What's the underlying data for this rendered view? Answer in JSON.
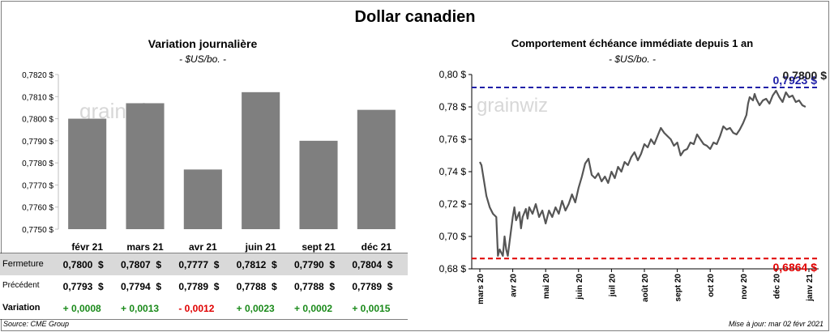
{
  "title": "Dollar canadien",
  "left_panel": {
    "title": "Variation  journalière",
    "unit": "- $US/bo. -",
    "watermark": "grainwiz"
  },
  "right_panel": {
    "title": "Comportement échéance immédiate depuis 1 an",
    "unit": "- $US/bo. -",
    "watermark": "grainwiz"
  },
  "table": {
    "rows": [
      {
        "label": "Fermeture",
        "values": [
          "0,7800  $",
          "0,7807  $",
          "0,7777  $",
          "0,7812  $",
          "0,7790  $",
          "0,7804  $"
        ]
      },
      {
        "label": "Précédent",
        "values": [
          "0,7793  $",
          "0,7794  $",
          "0,7789  $",
          "0,7788  $",
          "0,7788  $",
          "0,7789  $"
        ]
      },
      {
        "label": "Variation",
        "values": [
          "+ 0,0008",
          "+ 0,0013",
          "- 0,0012",
          "+ 0,0023",
          "+ 0,0002",
          "+ 0,0015"
        ]
      }
    ],
    "variation_colors": [
      "#1a8a1a",
      "#1a8a1a",
      "#e00000",
      "#1a8a1a",
      "#1a8a1a",
      "#1a8a1a"
    ]
  },
  "footer": {
    "source": "Source: CME Group",
    "updated": "Mise à jour: mar 02 févr 2021"
  },
  "chart_data": [
    {
      "type": "bar",
      "title": "Variation  journalière",
      "subtitle": "- $US/bo. -",
      "categories": [
        "févr 21",
        "mars 21",
        "avr 21",
        "juin 21",
        "sept 21",
        "déc 21"
      ],
      "values": [
        0.78,
        0.7807,
        0.7777,
        0.7812,
        0.779,
        0.7804
      ],
      "ylim": [
        0.775,
        0.782
      ],
      "yticks": [
        "0,7750 $",
        "0,7760 $",
        "0,7770 $",
        "0,7780 $",
        "0,7790 $",
        "0,7800 $",
        "0,7810 $",
        "0,7820 $"
      ],
      "bar_color": "#7f7f7f",
      "grid": false
    },
    {
      "type": "line",
      "title": "Comportement échéance immédiate depuis 1 an",
      "subtitle": "- $US/bo. -",
      "xlabels": [
        "mars 20",
        "avr 20",
        "mai 20",
        "juin 20",
        "juil 20",
        "août 20",
        "sept 20",
        "oct 20",
        "nov 20",
        "déc 20",
        "janv 21"
      ],
      "ylim": [
        0.68,
        0.8
      ],
      "yticks": [
        "0,68 $",
        "0,70 $",
        "0,72 $",
        "0,74 $",
        "0,76 $",
        "0,78 $",
        "0,80 $"
      ],
      "series": [
        {
          "color": "#555555",
          "points": [
            [
              0.0,
              0.746
            ],
            [
              0.05,
              0.744
            ],
            [
              0.12,
              0.735
            ],
            [
              0.2,
              0.725
            ],
            [
              0.3,
              0.718
            ],
            [
              0.4,
              0.714
            ],
            [
              0.5,
              0.712
            ],
            [
              0.55,
              0.688
            ],
            [
              0.6,
              0.692
            ],
            [
              0.65,
              0.69
            ],
            [
              0.7,
              0.688
            ],
            [
              0.75,
              0.7
            ],
            [
              0.8,
              0.692
            ],
            [
              0.85,
              0.688
            ],
            [
              0.9,
              0.696
            ],
            [
              1.0,
              0.712
            ],
            [
              1.05,
              0.718
            ],
            [
              1.1,
              0.71
            ],
            [
              1.2,
              0.715
            ],
            [
              1.25,
              0.705
            ],
            [
              1.3,
              0.712
            ],
            [
              1.4,
              0.717
            ],
            [
              1.45,
              0.711
            ],
            [
              1.5,
              0.718
            ],
            [
              1.6,
              0.714
            ],
            [
              1.7,
              0.72
            ],
            [
              1.8,
              0.712
            ],
            [
              1.9,
              0.716
            ],
            [
              2.0,
              0.708
            ],
            [
              2.1,
              0.716
            ],
            [
              2.2,
              0.712
            ],
            [
              2.3,
              0.718
            ],
            [
              2.4,
              0.714
            ],
            [
              2.5,
              0.722
            ],
            [
              2.6,
              0.716
            ],
            [
              2.7,
              0.72
            ],
            [
              2.8,
              0.726
            ],
            [
              2.9,
              0.721
            ],
            [
              3.0,
              0.73
            ],
            [
              3.1,
              0.737
            ],
            [
              3.2,
              0.745
            ],
            [
              3.3,
              0.748
            ],
            [
              3.4,
              0.738
            ],
            [
              3.5,
              0.736
            ],
            [
              3.6,
              0.739
            ],
            [
              3.7,
              0.734
            ],
            [
              3.8,
              0.737
            ],
            [
              3.9,
              0.733
            ],
            [
              4.0,
              0.74
            ],
            [
              4.1,
              0.736
            ],
            [
              4.2,
              0.743
            ],
            [
              4.3,
              0.74
            ],
            [
              4.4,
              0.746
            ],
            [
              4.5,
              0.744
            ],
            [
              4.6,
              0.749
            ],
            [
              4.7,
              0.752
            ],
            [
              4.8,
              0.747
            ],
            [
              4.9,
              0.751
            ],
            [
              5.0,
              0.757
            ],
            [
              5.1,
              0.755
            ],
            [
              5.2,
              0.76
            ],
            [
              5.3,
              0.757
            ],
            [
              5.4,
              0.762
            ],
            [
              5.5,
              0.767
            ],
            [
              5.6,
              0.764
            ],
            [
              5.7,
              0.762
            ],
            [
              5.8,
              0.76
            ],
            [
              5.9,
              0.756
            ],
            [
              6.0,
              0.758
            ],
            [
              6.1,
              0.75
            ],
            [
              6.2,
              0.753
            ],
            [
              6.3,
              0.754
            ],
            [
              6.4,
              0.758
            ],
            [
              6.5,
              0.757
            ],
            [
              6.6,
              0.763
            ],
            [
              6.7,
              0.76
            ],
            [
              6.8,
              0.757
            ],
            [
              6.9,
              0.756
            ],
            [
              7.0,
              0.754
            ],
            [
              7.1,
              0.758
            ],
            [
              7.2,
              0.757
            ],
            [
              7.3,
              0.762
            ],
            [
              7.4,
              0.768
            ],
            [
              7.5,
              0.766
            ],
            [
              7.6,
              0.767
            ],
            [
              7.7,
              0.764
            ],
            [
              7.8,
              0.763
            ],
            [
              7.9,
              0.766
            ],
            [
              8.0,
              0.77
            ],
            [
              8.1,
              0.775
            ],
            [
              8.15,
              0.782
            ],
            [
              8.2,
              0.786
            ],
            [
              8.3,
              0.784
            ],
            [
              8.35,
              0.788
            ],
            [
              8.4,
              0.785
            ],
            [
              8.5,
              0.781
            ],
            [
              8.6,
              0.784
            ],
            [
              8.7,
              0.785
            ],
            [
              8.8,
              0.782
            ],
            [
              8.9,
              0.787
            ],
            [
              9.0,
              0.79
            ],
            [
              9.1,
              0.786
            ],
            [
              9.2,
              0.783
            ],
            [
              9.3,
              0.789
            ],
            [
              9.4,
              0.786
            ],
            [
              9.5,
              0.787
            ],
            [
              9.6,
              0.783
            ],
            [
              9.7,
              0.784
            ],
            [
              9.8,
              0.781
            ],
            [
              9.9,
              0.78
            ]
          ]
        }
      ],
      "reference_lines": [
        {
          "value": 0.792,
          "label": "0,7923 $",
          "color": "#1f1fa8",
          "style": "dashed"
        },
        {
          "value": 0.6864,
          "label": "0,6864 $",
          "color": "#e00000",
          "style": "dashed"
        }
      ],
      "last_value_label": "0,7800 $",
      "grid": false
    }
  ]
}
